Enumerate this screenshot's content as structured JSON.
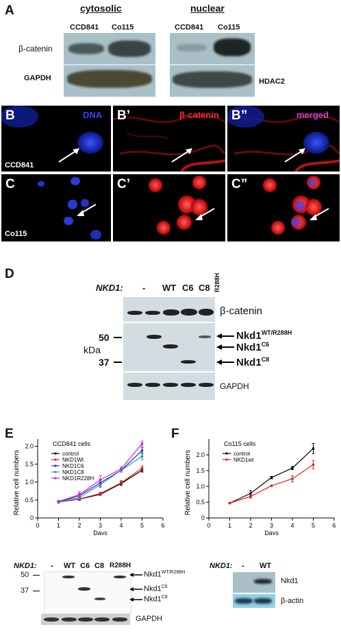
{
  "panel_a": {
    "label": "A",
    "cytosolic": "cytosolic",
    "nuclear": "nuclear",
    "lane1": "CCD841",
    "lane2": "Co115",
    "lane3": "CCD841",
    "lane4": "Co115",
    "row1": "β-catenin",
    "row2": "GAPDH",
    "row2_right": "HDAC2"
  },
  "panel_b": {
    "label_b": "B",
    "label_b1": "B’",
    "label_b2": "B”",
    "tag_dna": "DNA",
    "tag_cat": "β-catenin",
    "tag_merged": "merged",
    "cell_line": "CCD841",
    "colors": {
      "dna": "#2f47ff",
      "catenin": "#ff2a2a",
      "merged": "#d63ad6"
    }
  },
  "panel_c": {
    "label_c": "C",
    "label_c1": "C’",
    "label_c2": "C”",
    "cell_line": "Co115"
  },
  "panel_d": {
    "label": "D",
    "nkd": "NKD1:",
    "lanes": [
      "-",
      "WT",
      "C6",
      "C8",
      "R288H"
    ],
    "cat": "β-catenin",
    "nkd_wt": "Nkd1",
    "nkd_wt_sup": "WT/R288H",
    "nkd_c6": "Nkd1",
    "nkd_c6_sup": "C6",
    "nkd_c8": "Nkd1",
    "nkd_c8_sup": "C8",
    "gapdh": "GAPDH",
    "kda": "kDa",
    "m50": "50",
    "m37": "37"
  },
  "panel_e": {
    "label": "E",
    "blot": {
      "nkd": "NKD1:",
      "lanes": [
        "-",
        "WT",
        "C6",
        "C8",
        "R288H"
      ],
      "m50": "50",
      "m37": "37",
      "wt": "Nkd1",
      "wt_sup": "WT/R288H",
      "c6": "Nkd1",
      "c6_sup": "C6",
      "c8": "Nkd1",
      "c8_sup": "C8",
      "gapdh": "GAPDH"
    }
  },
  "panel_f": {
    "label": "F",
    "blot": {
      "nkd": "NKD1:",
      "lanes": [
        "-",
        "WT"
      ],
      "row1": "Nkd1",
      "row2": "β-actin"
    }
  },
  "chart_data": [
    {
      "type": "line",
      "title": "CCD841 cells",
      "xlabel": "Days",
      "ylabel": "Relative cell numbers",
      "x": [
        1,
        2,
        3,
        4,
        5
      ],
      "xlim": [
        0,
        6
      ],
      "ylim": [
        0,
        2.2
      ],
      "xticks": [
        0,
        1,
        2,
        3,
        4,
        5,
        6
      ],
      "yticks": [
        0,
        0.5,
        1.0,
        1.5,
        2.0
      ],
      "ytick_labels": [
        "0",
        "0.5",
        "1.0",
        "1.5",
        "2.0"
      ],
      "legend": "top-left",
      "series": [
        {
          "name": "control",
          "color": "#000000",
          "values": [
            0.45,
            0.52,
            0.66,
            0.96,
            1.33
          ],
          "err": [
            0.03,
            0.03,
            0.03,
            0.05,
            0.05
          ]
        },
        {
          "name": "NKD1Wt",
          "color": "#e02020",
          "values": [
            0.44,
            0.53,
            0.68,
            0.98,
            1.39
          ],
          "err": [
            0.03,
            0.03,
            0.04,
            0.06,
            0.06
          ]
        },
        {
          "name": "NKD1C6",
          "color": "#2a2ad8",
          "values": [
            0.45,
            0.62,
            0.98,
            1.33,
            1.88
          ],
          "err": [
            0.03,
            0.06,
            0.1,
            0.05,
            0.08
          ]
        },
        {
          "name": "NKD1C8",
          "color": "#19a0a0",
          "values": [
            0.44,
            0.57,
            0.93,
            1.33,
            1.72
          ],
          "err": [
            0.03,
            0.05,
            0.08,
            0.05,
            0.1
          ]
        },
        {
          "name": "NKD1R228H",
          "color": "#d020d0",
          "values": [
            0.46,
            0.65,
            1.06,
            1.37,
            2.07
          ],
          "err": [
            0.03,
            0.08,
            0.12,
            0.05,
            0.07
          ]
        }
      ]
    },
    {
      "type": "line",
      "title": "Co115 cells",
      "xlabel": "Days",
      "ylabel": "Relative cell numbers",
      "x": [
        1,
        2,
        3,
        4,
        5
      ],
      "xlim": [
        0,
        6
      ],
      "ylim": [
        0,
        2.5
      ],
      "xticks": [
        0,
        1,
        2,
        3,
        4,
        5,
        6
      ],
      "yticks": [
        0,
        0.5,
        1.0,
        1.5,
        2.0
      ],
      "ytick_labels": [
        "0",
        "0.5",
        "1.0",
        "1.5",
        "2.0"
      ],
      "legend": "top-left",
      "series": [
        {
          "name": "control",
          "color": "#000000",
          "values": [
            0.47,
            0.78,
            1.28,
            1.58,
            2.2
          ],
          "err": [
            0.02,
            0.09,
            0.04,
            0.05,
            0.16
          ]
        },
        {
          "name": "NKD1wt",
          "color": "#e02020",
          "values": [
            0.47,
            0.68,
            1.02,
            1.24,
            1.69
          ],
          "err": [
            0.02,
            0.05,
            0.02,
            0.1,
            0.13
          ]
        }
      ]
    }
  ]
}
